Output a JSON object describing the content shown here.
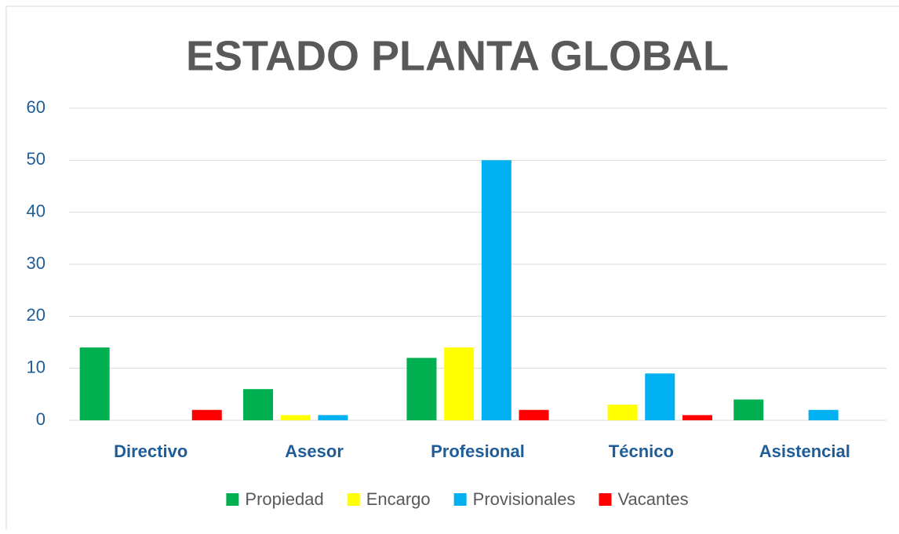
{
  "chart_data": {
    "type": "bar",
    "title": "ESTADO PLANTA GLOBAL",
    "categories": [
      "Directivo",
      "Asesor",
      "Profesional",
      "Técnico",
      "Asistencial"
    ],
    "series": [
      {
        "name": "Propiedad",
        "color": "#00b050",
        "values": [
          14,
          6,
          12,
          0,
          4
        ]
      },
      {
        "name": "Encargo",
        "color": "#ffff00",
        "values": [
          0,
          1,
          14,
          3,
          0
        ]
      },
      {
        "name": "Provisionales",
        "color": "#00b0f0",
        "values": [
          0,
          1,
          50,
          9,
          2
        ]
      },
      {
        "name": "Vacantes",
        "color": "#ff0000",
        "values": [
          2,
          0,
          2,
          1,
          0
        ]
      }
    ],
    "ylim": [
      0,
      60
    ],
    "yticks": [
      0,
      10,
      20,
      30,
      40,
      50,
      60
    ],
    "grid": true,
    "legend": "bottom"
  }
}
